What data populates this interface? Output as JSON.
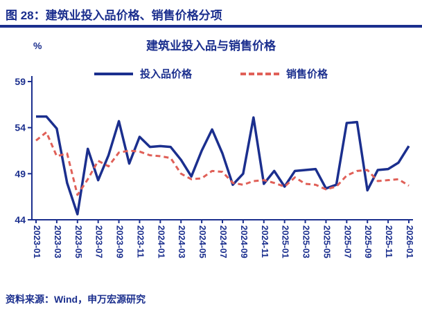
{
  "header": {
    "figure_title": "图 28：建筑业投入品价格、销售价格分项"
  },
  "source": {
    "text": "资料来源：Wind，申万宏源研究"
  },
  "colors": {
    "navy": "#1b2f8e",
    "red": "#e06058"
  },
  "chart_data": {
    "type": "line",
    "title": "建筑业投入品与销售价格",
    "y_unit_label": "%",
    "ylim": [
      44,
      59
    ],
    "yticks": [
      44,
      49,
      54,
      59
    ],
    "grid": false,
    "legend_position": "top",
    "x": [
      "2023-01",
      "2023-02",
      "2023-03",
      "2023-04",
      "2023-05",
      "2023-06",
      "2023-07",
      "2023-08",
      "2023-09",
      "2023-10",
      "2023-11",
      "2023-12",
      "2024-01",
      "2024-02",
      "2024-03",
      "2024-04",
      "2024-05",
      "2024-06",
      "2024-07",
      "2024-08",
      "2024-09",
      "2024-10",
      "2024-11",
      "2024-12",
      "2025-01",
      "2025-02",
      "2025-03",
      "2025-04",
      "2025-05",
      "2025-06",
      "2025-07",
      "2025-08",
      "2025-09",
      "2025-10",
      "2025-11",
      "2025-12",
      "2026-01"
    ],
    "x_tick_labels": [
      "2023-01",
      "2023-03",
      "2023-05",
      "2023-07",
      "2023-09",
      "2023-11",
      "2024-01",
      "2024-03",
      "2024-05",
      "2024-07",
      "2024-09",
      "2024-11",
      "2025-01",
      "2025-03",
      "2025-05",
      "2025-07",
      "2025-09",
      "2025-11",
      "2026-01"
    ],
    "series": [
      {
        "name": "投入品价格",
        "style": "solid",
        "color": "#1b2f8e",
        "values": [
          55.2,
          55.2,
          53.9,
          48.0,
          44.6,
          51.7,
          48.3,
          51.0,
          54.7,
          50.1,
          53.0,
          51.9,
          52.0,
          51.9,
          50.5,
          48.7,
          51.5,
          53.8,
          51.2,
          47.8,
          49.0,
          55.1,
          47.9,
          49.3,
          47.6,
          49.3,
          49.4,
          49.5,
          47.4,
          47.8,
          54.5,
          54.6,
          47.2,
          49.4,
          49.5,
          50.2,
          52.0
        ]
      },
      {
        "name": "销售价格",
        "style": "dashed",
        "color": "#e06058",
        "values": [
          52.6,
          53.5,
          50.9,
          51.2,
          46.7,
          48.4,
          50.4,
          49.8,
          51.3,
          51.5,
          51.4,
          51.0,
          50.9,
          50.7,
          49.0,
          48.4,
          48.5,
          49.3,
          49.2,
          48.0,
          47.8,
          48.2,
          48.3,
          48.0,
          47.6,
          48.6,
          47.9,
          47.8,
          47.3,
          47.6,
          48.8,
          49.3,
          49.4,
          48.2,
          48.3,
          48.4,
          47.7
        ]
      }
    ]
  }
}
